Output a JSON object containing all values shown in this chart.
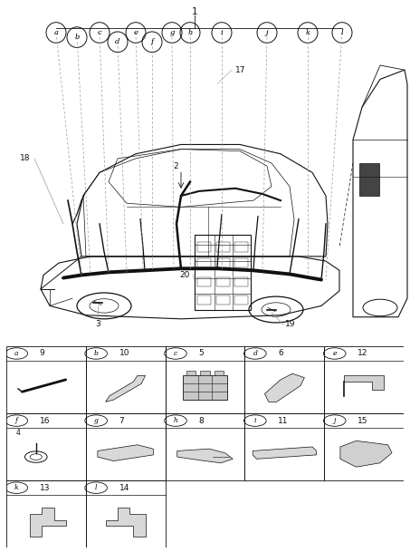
{
  "bg_color": "#ffffff",
  "line_color": "#111111",
  "gray": "#999999",
  "table_rows": [
    [
      [
        "a",
        "9"
      ],
      [
        "b",
        "10"
      ],
      [
        "c",
        "5"
      ],
      [
        "d",
        "6"
      ],
      [
        "e",
        "12"
      ]
    ],
    [
      [
        "f",
        "16"
      ],
      [
        "g",
        "7"
      ],
      [
        "h",
        "8"
      ],
      [
        "i",
        "11"
      ],
      [
        "j",
        "15"
      ]
    ],
    [
      [
        "k",
        "13"
      ],
      [
        "l",
        "14"
      ],
      null,
      null,
      null
    ]
  ],
  "callout_labels": [
    "a",
    "b",
    "c",
    "d",
    "e",
    "f",
    "g",
    "h",
    "i",
    "j",
    "k",
    "l"
  ],
  "main_numbers": [
    "1",
    "2",
    "3",
    "17",
    "18",
    "19",
    "20"
  ]
}
